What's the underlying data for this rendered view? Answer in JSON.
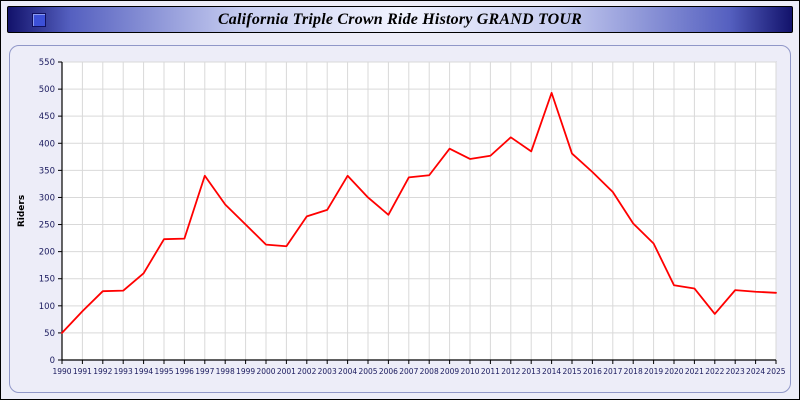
{
  "window": {
    "title": "California Triple Crown Ride History GRAND TOUR"
  },
  "chart_data": {
    "type": "line",
    "title": "California Triple Crown Ride History GRAND TOUR",
    "xlabel": "",
    "ylabel": "Riders",
    "ylim": [
      0,
      550
    ],
    "ytick_step": 50,
    "grid": true,
    "legend_position": "none",
    "line_color": "#ff0000",
    "plot_bg": "#ffffff",
    "grid_color": "#d9d9d9",
    "axis_text_color": "#1a1a5e",
    "categories": [
      1990,
      1991,
      1992,
      1993,
      1994,
      1995,
      1996,
      1997,
      1998,
      1999,
      2000,
      2001,
      2002,
      2003,
      2004,
      2005,
      2006,
      2007,
      2008,
      2009,
      2010,
      2011,
      2012,
      2013,
      2014,
      2015,
      2016,
      2017,
      2018,
      2019,
      2020,
      2021,
      2022,
      2023,
      2024,
      2025
    ],
    "values": [
      50,
      90,
      127,
      128,
      160,
      223,
      224,
      340,
      287,
      250,
      213,
      210,
      265,
      277,
      340,
      300,
      268,
      337,
      341,
      390,
      371,
      377,
      411,
      385,
      493,
      381,
      347,
      310,
      252,
      215,
      138,
      132,
      85,
      129,
      126,
      124
    ]
  }
}
